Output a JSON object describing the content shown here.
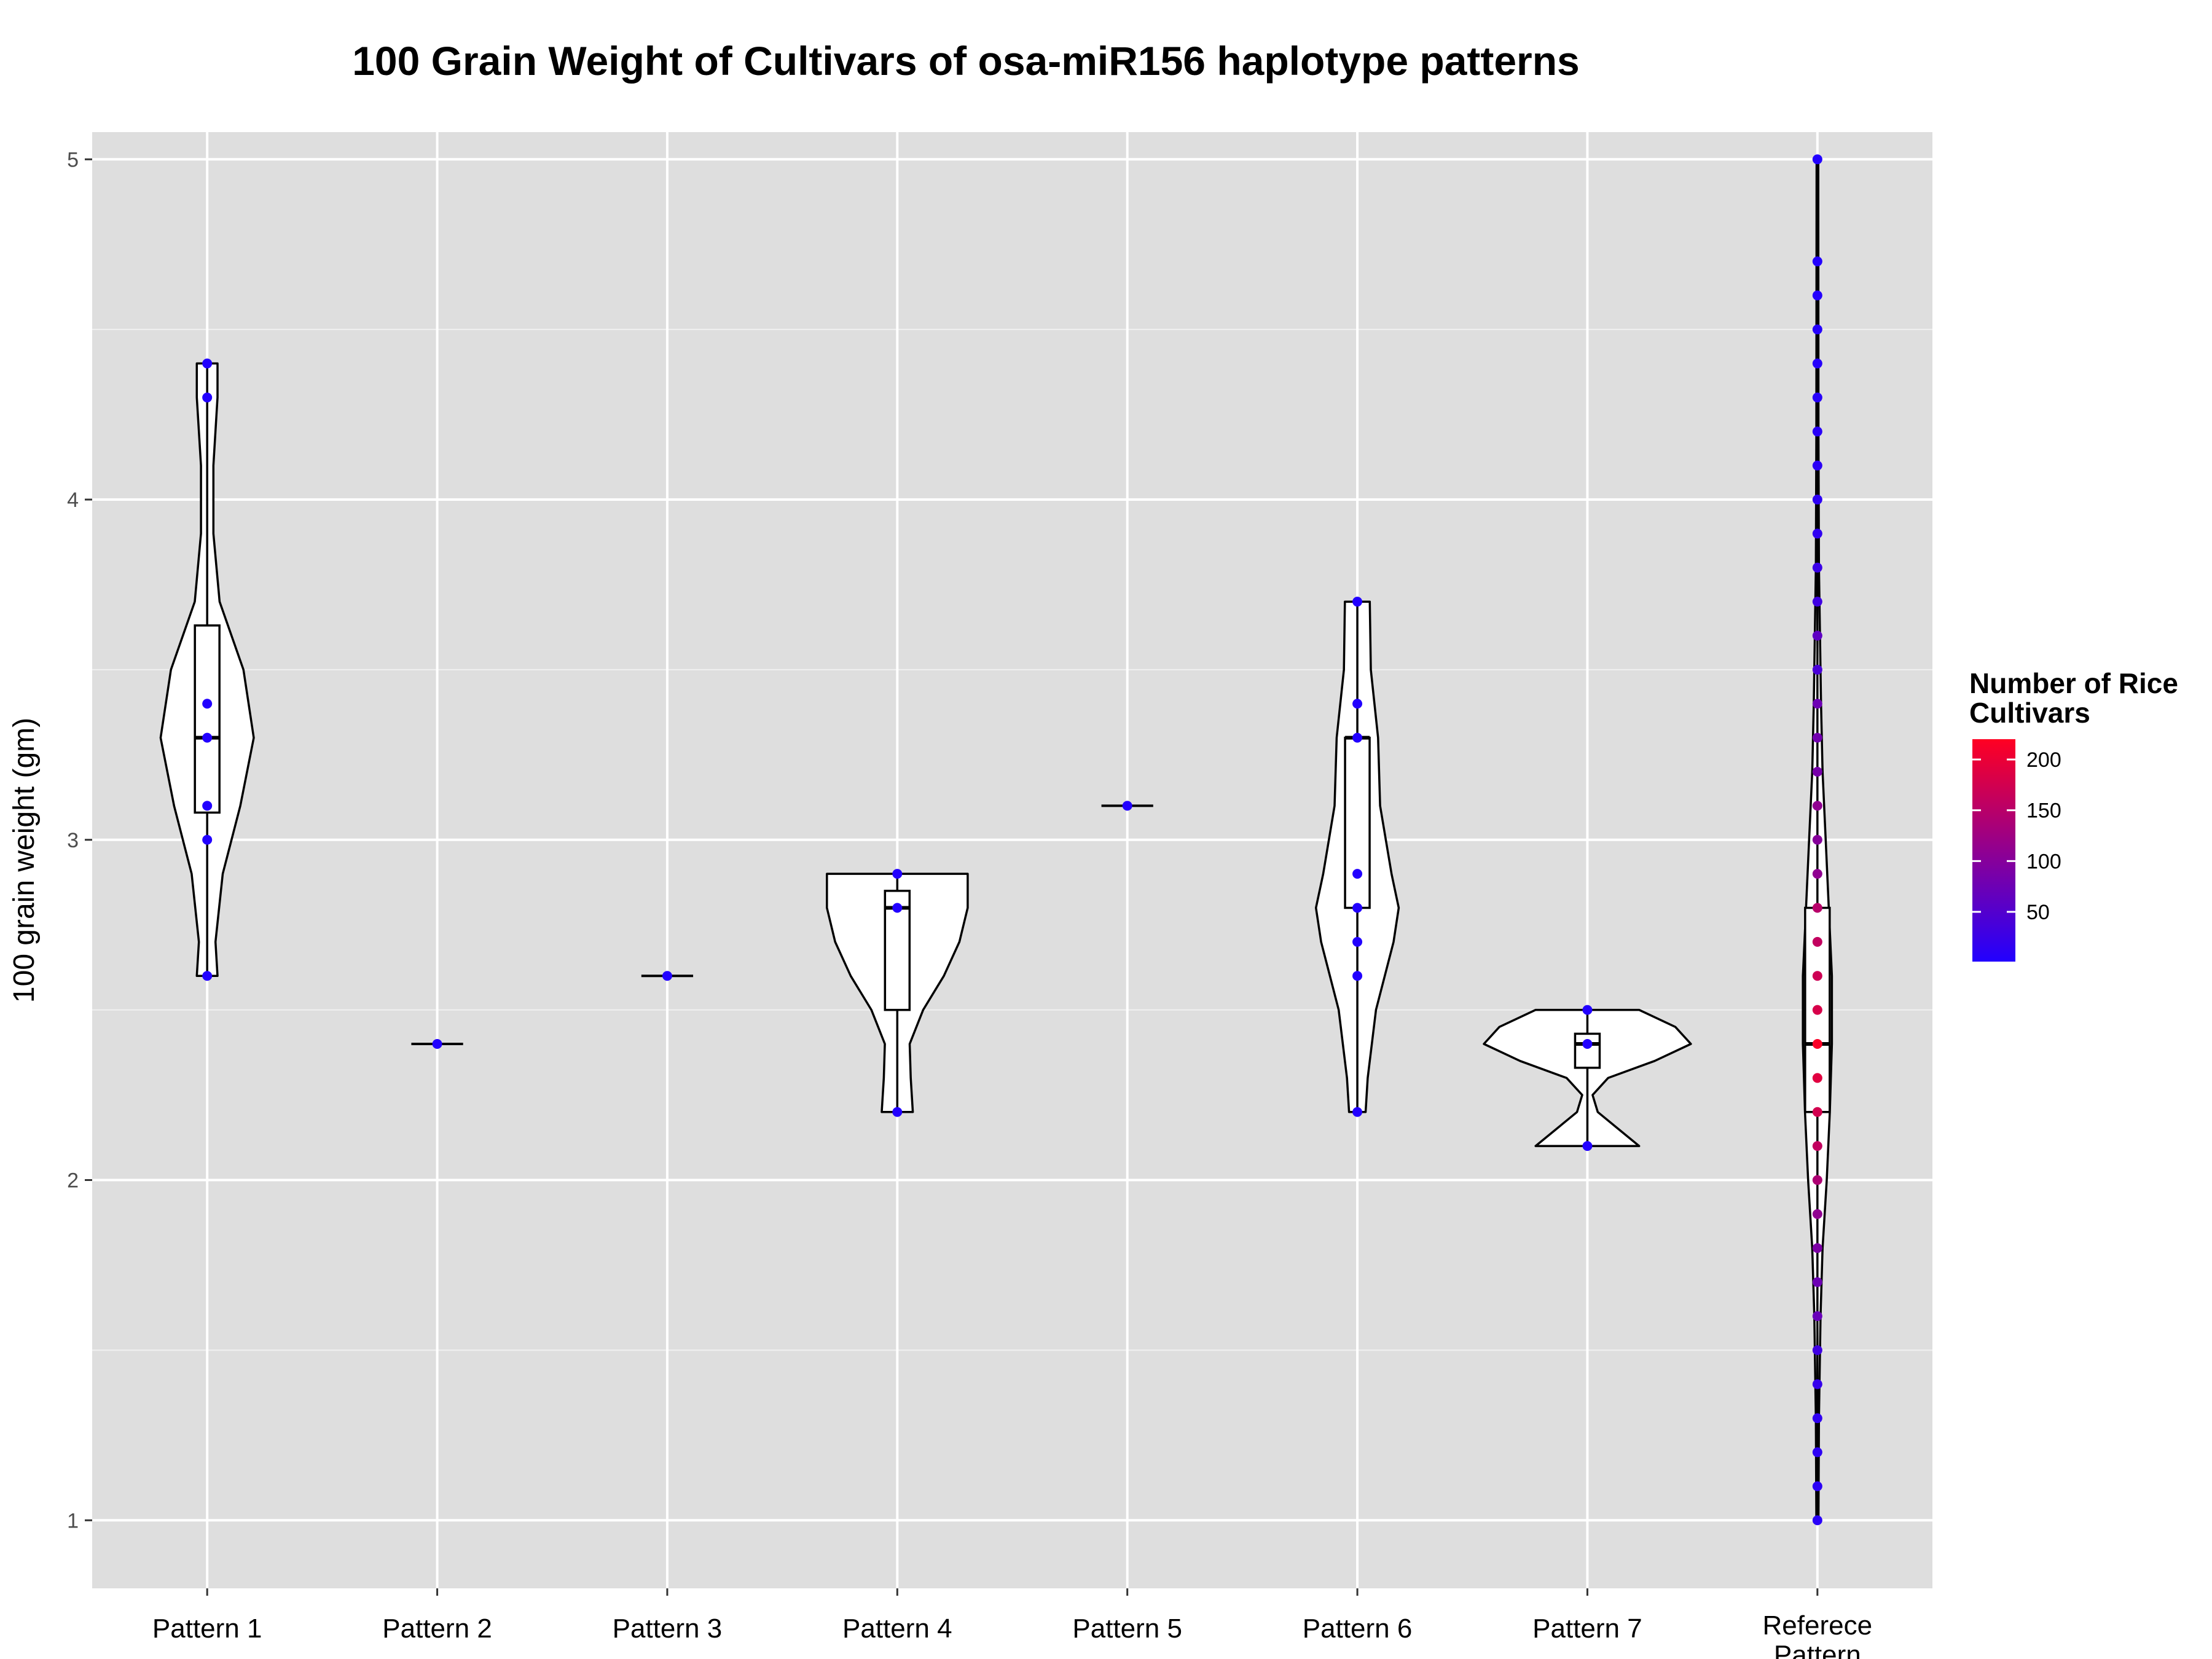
{
  "chart_data": {
    "type": "violin",
    "title": "100 Grain Weight of Cultivars of osa-miR156 haplotype patterns",
    "xlabel": "",
    "ylabel": "100 grain weight (gm)",
    "ylim": [
      0.8,
      5.08
    ],
    "yticks": [
      1,
      2,
      3,
      4,
      5
    ],
    "grid": true,
    "categories": [
      "Pattern 1",
      "Pattern 2",
      "Pattern 3",
      "Pattern 4",
      "Pattern 5",
      "Pattern 6",
      "Pattern 7",
      "Referece Pattern"
    ],
    "series": [
      {
        "category": "Pattern 1",
        "points": [
          {
            "y": 4.4,
            "n": 1
          },
          {
            "y": 4.3,
            "n": 1
          },
          {
            "y": 3.4,
            "n": 1
          },
          {
            "y": 3.3,
            "n": 1
          },
          {
            "y": 3.1,
            "n": 1
          },
          {
            "y": 3.0,
            "n": 1
          },
          {
            "y": 2.6,
            "n": 1
          }
        ],
        "box": {
          "q1": 3.08,
          "median": 3.3,
          "q3": 3.63,
          "min": 2.6,
          "max": 4.4
        },
        "violin": [
          [
            2.6,
            0.1
          ],
          [
            2.7,
            0.08
          ],
          [
            2.9,
            0.15
          ],
          [
            3.1,
            0.32
          ],
          [
            3.3,
            0.45
          ],
          [
            3.5,
            0.35
          ],
          [
            3.7,
            0.12
          ],
          [
            3.9,
            0.06
          ],
          [
            4.1,
            0.06
          ],
          [
            4.3,
            0.1
          ],
          [
            4.4,
            0.1
          ]
        ]
      },
      {
        "category": "Pattern 2",
        "points": [
          {
            "y": 2.4,
            "n": 1
          }
        ],
        "box": {
          "q1": 2.4,
          "median": 2.4,
          "q3": 2.4,
          "min": 2.4,
          "max": 2.4
        },
        "violin": [
          [
            2.4,
            0.25
          ]
        ]
      },
      {
        "category": "Pattern 3",
        "points": [
          {
            "y": 2.6,
            "n": 1
          }
        ],
        "box": {
          "q1": 2.6,
          "median": 2.6,
          "q3": 2.6,
          "min": 2.6,
          "max": 2.6
        },
        "violin": [
          [
            2.6,
            0.25
          ]
        ]
      },
      {
        "category": "Pattern 4",
        "points": [
          {
            "y": 2.9,
            "n": 1
          },
          {
            "y": 2.8,
            "n": 1
          },
          {
            "y": 2.2,
            "n": 1
          }
        ],
        "box": {
          "q1": 2.5,
          "median": 2.8,
          "q3": 2.85,
          "min": 2.2,
          "max": 2.9
        },
        "violin": [
          [
            2.2,
            0.15
          ],
          [
            2.3,
            0.13
          ],
          [
            2.4,
            0.12
          ],
          [
            2.5,
            0.25
          ],
          [
            2.6,
            0.45
          ],
          [
            2.7,
            0.6
          ],
          [
            2.8,
            0.68
          ],
          [
            2.9,
            0.68
          ]
        ]
      },
      {
        "category": "Pattern 5",
        "points": [
          {
            "y": 3.1,
            "n": 1
          }
        ],
        "box": {
          "q1": 3.1,
          "median": 3.1,
          "q3": 3.1,
          "min": 3.1,
          "max": 3.1
        },
        "violin": [
          [
            3.1,
            0.25
          ]
        ]
      },
      {
        "category": "Pattern 6",
        "points": [
          {
            "y": 3.7,
            "n": 1
          },
          {
            "y": 3.4,
            "n": 1
          },
          {
            "y": 3.3,
            "n": 1
          },
          {
            "y": 2.9,
            "n": 1
          },
          {
            "y": 2.8,
            "n": 1
          },
          {
            "y": 2.7,
            "n": 1
          },
          {
            "y": 2.6,
            "n": 1
          },
          {
            "y": 2.2,
            "n": 1
          }
        ],
        "box": {
          "q1": 2.8,
          "median": 3.3,
          "q3": 3.3,
          "min": 2.2,
          "max": 3.7
        },
        "violin": [
          [
            2.2,
            0.08
          ],
          [
            2.3,
            0.1
          ],
          [
            2.5,
            0.18
          ],
          [
            2.7,
            0.35
          ],
          [
            2.8,
            0.4
          ],
          [
            2.9,
            0.33
          ],
          [
            3.1,
            0.22
          ],
          [
            3.3,
            0.2
          ],
          [
            3.5,
            0.13
          ],
          [
            3.7,
            0.12
          ]
        ]
      },
      {
        "category": "Pattern 7",
        "points": [
          {
            "y": 2.5,
            "n": 1
          },
          {
            "y": 2.4,
            "n": 1
          },
          {
            "y": 2.1,
            "n": 1
          }
        ],
        "box": {
          "q1": 2.33,
          "median": 2.4,
          "q3": 2.43,
          "min": 2.1,
          "max": 2.5
        },
        "violin": [
          [
            2.1,
            0.5
          ],
          [
            2.15,
            0.3
          ],
          [
            2.2,
            0.1
          ],
          [
            2.25,
            0.05
          ],
          [
            2.3,
            0.2
          ],
          [
            2.35,
            0.65
          ],
          [
            2.4,
            1.0
          ],
          [
            2.45,
            0.85
          ],
          [
            2.5,
            0.5
          ]
        ]
      },
      {
        "category": "Referece Pattern",
        "points": [
          {
            "y": 1.0,
            "n": 8
          },
          {
            "y": 1.1,
            "n": 10
          },
          {
            "y": 1.2,
            "n": 12
          },
          {
            "y": 1.3,
            "n": 15
          },
          {
            "y": 1.4,
            "n": 20
          },
          {
            "y": 1.5,
            "n": 30
          },
          {
            "y": 1.6,
            "n": 70
          },
          {
            "y": 1.7,
            "n": 75
          },
          {
            "y": 1.8,
            "n": 90
          },
          {
            "y": 1.9,
            "n": 110
          },
          {
            "y": 2.0,
            "n": 140
          },
          {
            "y": 2.1,
            "n": 160
          },
          {
            "y": 2.2,
            "n": 175
          },
          {
            "y": 2.3,
            "n": 190
          },
          {
            "y": 2.4,
            "n": 215
          },
          {
            "y": 2.5,
            "n": 180
          },
          {
            "y": 2.6,
            "n": 170
          },
          {
            "y": 2.7,
            "n": 160
          },
          {
            "y": 2.8,
            "n": 150
          },
          {
            "y": 2.9,
            "n": 110
          },
          {
            "y": 3.0,
            "n": 100
          },
          {
            "y": 3.1,
            "n": 110
          },
          {
            "y": 3.2,
            "n": 85
          },
          {
            "y": 3.3,
            "n": 80
          },
          {
            "y": 3.4,
            "n": 75
          },
          {
            "y": 3.5,
            "n": 40
          },
          {
            "y": 3.6,
            "n": 60
          },
          {
            "y": 3.7,
            "n": 30
          },
          {
            "y": 3.8,
            "n": 25
          },
          {
            "y": 3.9,
            "n": 15
          },
          {
            "y": 4.0,
            "n": 12
          },
          {
            "y": 4.1,
            "n": 10
          },
          {
            "y": 4.2,
            "n": 8
          },
          {
            "y": 4.3,
            "n": 6
          },
          {
            "y": 4.4,
            "n": 5
          },
          {
            "y": 4.5,
            "n": 4
          },
          {
            "y": 4.6,
            "n": 3
          },
          {
            "y": 4.7,
            "n": 2
          },
          {
            "y": 5.0,
            "n": 1
          }
        ],
        "box": {
          "q1": 2.2,
          "median": 2.4,
          "q3": 2.8,
          "min": 1.0,
          "max": 5.0
        },
        "violin": [
          [
            1.0,
            0.01
          ],
          [
            1.3,
            0.015
          ],
          [
            1.6,
            0.03
          ],
          [
            1.8,
            0.05
          ],
          [
            2.0,
            0.09
          ],
          [
            2.2,
            0.12
          ],
          [
            2.4,
            0.14
          ],
          [
            2.6,
            0.14
          ],
          [
            2.8,
            0.11
          ],
          [
            3.0,
            0.08
          ],
          [
            3.2,
            0.05
          ],
          [
            3.4,
            0.035
          ],
          [
            3.6,
            0.025
          ],
          [
            3.8,
            0.015
          ],
          [
            4.2,
            0.01
          ],
          [
            5.0,
            0.008
          ]
        ]
      }
    ],
    "legend": {
      "title_line1": "Number of Rice",
      "title_line2": "Cultivars",
      "position": "right",
      "ticks": [
        "200",
        "150",
        "100",
        "50"
      ],
      "tick_values": [
        200,
        150,
        100,
        50
      ],
      "range": [
        1,
        220
      ],
      "low_color": "#2200ff",
      "high_color": "#ff0022"
    },
    "colors": {
      "panel_bg": "#dedede",
      "grid": "#ffffff",
      "violin_fill": "#ffffff",
      "stroke": "#000000"
    }
  }
}
